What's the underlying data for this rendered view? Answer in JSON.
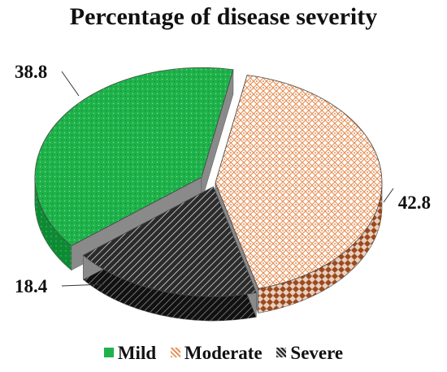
{
  "chart_data": {
    "type": "pie",
    "title": "Percentage of disease severity",
    "labels": [
      "Mild",
      "Moderate",
      "Severe"
    ],
    "values": [
      38.8,
      42.8,
      18.4
    ],
    "data_labels": [
      "38.8",
      "42.8",
      "18.4"
    ],
    "legend_position": "bottom",
    "style": "3d-exploded",
    "colors": {
      "Mild": "#1fb24a",
      "Moderate": "#e8925a",
      "Severe": "#2b2b2b"
    }
  }
}
